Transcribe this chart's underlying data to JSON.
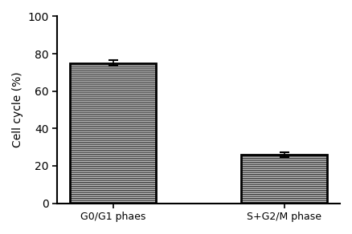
{
  "categories": [
    "G0/G1 phaes",
    "S+G2/M phase"
  ],
  "values": [
    75.0,
    26.0
  ],
  "error_bars": [
    1.5,
    1.2
  ],
  "bar_color": "#ffffff",
  "bar_edgecolor": "#000000",
  "hatch_pattern": "----------",
  "ylabel": "Cell cycle (%)",
  "ylim": [
    0,
    100
  ],
  "yticks": [
    0,
    20,
    40,
    60,
    80,
    100
  ],
  "background_color": "#ffffff",
  "bar_width": 0.5,
  "capsize": 4,
  "bar_linewidth": 2.0,
  "figsize": [
    4.38,
    2.92
  ],
  "dpi": 100
}
